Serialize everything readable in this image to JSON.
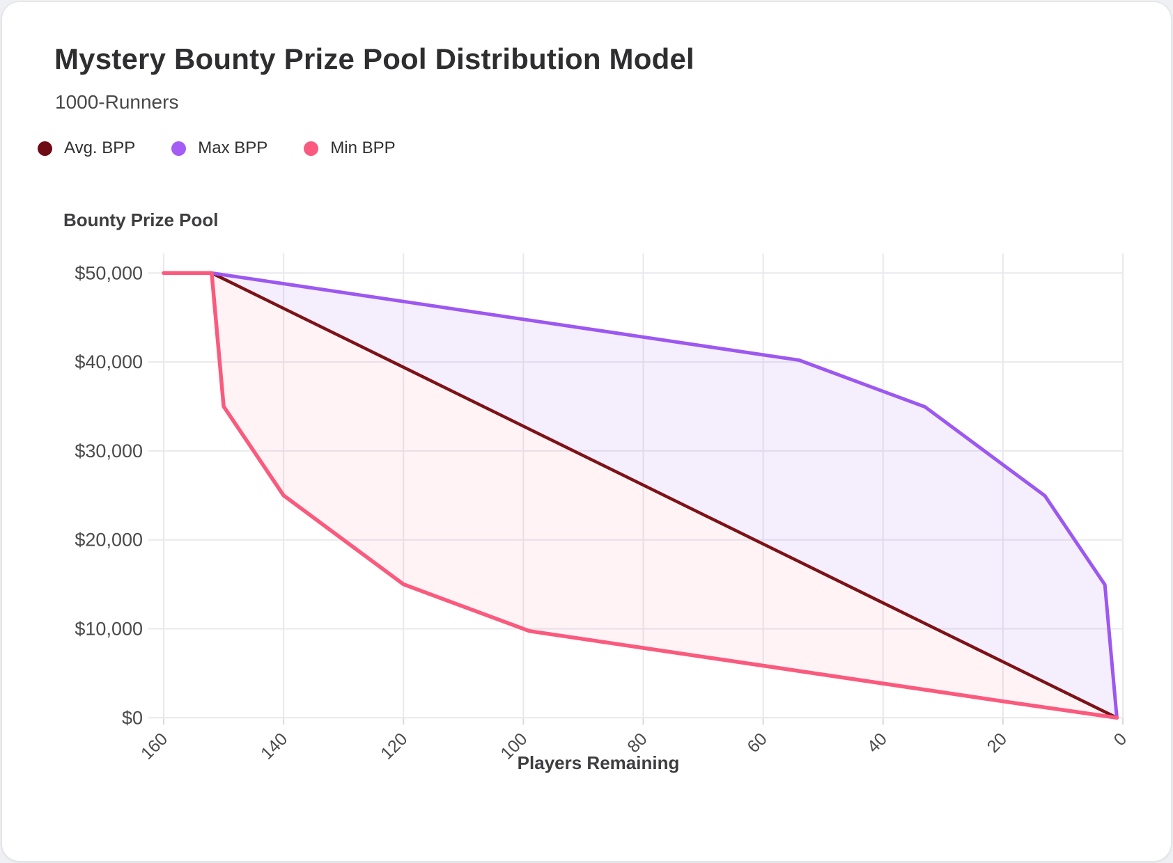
{
  "header": {
    "title": "Mystery Bounty Prize Pool Distribution Model",
    "subtitle": "1000-Runners"
  },
  "legend": [
    {
      "label": "Avg. BPP",
      "color": "#6e0b14"
    },
    {
      "label": "Max BPP",
      "color": "#a45cf5"
    },
    {
      "label": "Min BPP",
      "color": "#fa5a7d"
    }
  ],
  "chart_data": {
    "type": "line",
    "title": "Mystery Bounty Prize Pool Distribution Model",
    "subtitle": "1000-Runners",
    "xlabel": "Players Remaining",
    "ylabel": "Bounty Prize Pool",
    "x_axis": {
      "reversed": true,
      "min": 0,
      "max": 160,
      "ticks": [
        160,
        140,
        120,
        100,
        80,
        60,
        40,
        20,
        0
      ]
    },
    "y_axis": {
      "min": 0,
      "max": 50000,
      "ticks": [
        0,
        10000,
        20000,
        30000,
        40000,
        50000
      ],
      "tick_labels": [
        "$0",
        "$10,000",
        "$20,000",
        "$30,000",
        "$40,000",
        "$50,000"
      ]
    },
    "grid": true,
    "legend_position": "top-left",
    "series": [
      {
        "name": "Avg. BPP",
        "color": "#7d1217",
        "stroke_width": 4.5,
        "points": [
          [
            160,
            50000
          ],
          [
            152,
            50000
          ],
          [
            140,
            46026
          ],
          [
            120,
            39404
          ],
          [
            100,
            32781
          ],
          [
            80,
            26159
          ],
          [
            60,
            19536
          ],
          [
            40,
            12914
          ],
          [
            20,
            6291
          ],
          [
            1,
            0
          ]
        ]
      },
      {
        "name": "Max BPP",
        "color": "#9c58f0",
        "stroke_width": 5,
        "points": [
          [
            160,
            50000
          ],
          [
            152,
            50000
          ],
          [
            140,
            48800
          ],
          [
            120,
            46800
          ],
          [
            100,
            44800
          ],
          [
            80,
            42800
          ],
          [
            60,
            40800
          ],
          [
            54,
            40200
          ],
          [
            40,
            36700
          ],
          [
            33,
            34950
          ],
          [
            20,
            28450
          ],
          [
            13,
            24950
          ],
          [
            3,
            14950
          ],
          [
            2,
            7450
          ],
          [
            1,
            0
          ]
        ]
      },
      {
        "name": "Min BPP",
        "color": "#fa5a7d",
        "stroke_width": 5.5,
        "points": [
          [
            160,
            50000
          ],
          [
            152,
            50000
          ],
          [
            150,
            35000
          ],
          [
            140,
            25000
          ],
          [
            120,
            15000
          ],
          [
            99,
            9750
          ],
          [
            80,
            7850
          ],
          [
            60,
            5850
          ],
          [
            40,
            3850
          ],
          [
            20,
            1850
          ],
          [
            1,
            0
          ]
        ]
      }
    ],
    "bands": [
      {
        "between": [
          "Max BPP",
          "Avg. BPP"
        ],
        "fill": "rgba(156,88,240,0.10)"
      },
      {
        "between": [
          "Avg. BPP",
          "Min BPP"
        ],
        "fill": "rgba(250,90,125,0.07)"
      }
    ],
    "colors": {
      "gridline": "#e9e9ed",
      "tick_stub": "#d9d9de"
    }
  }
}
